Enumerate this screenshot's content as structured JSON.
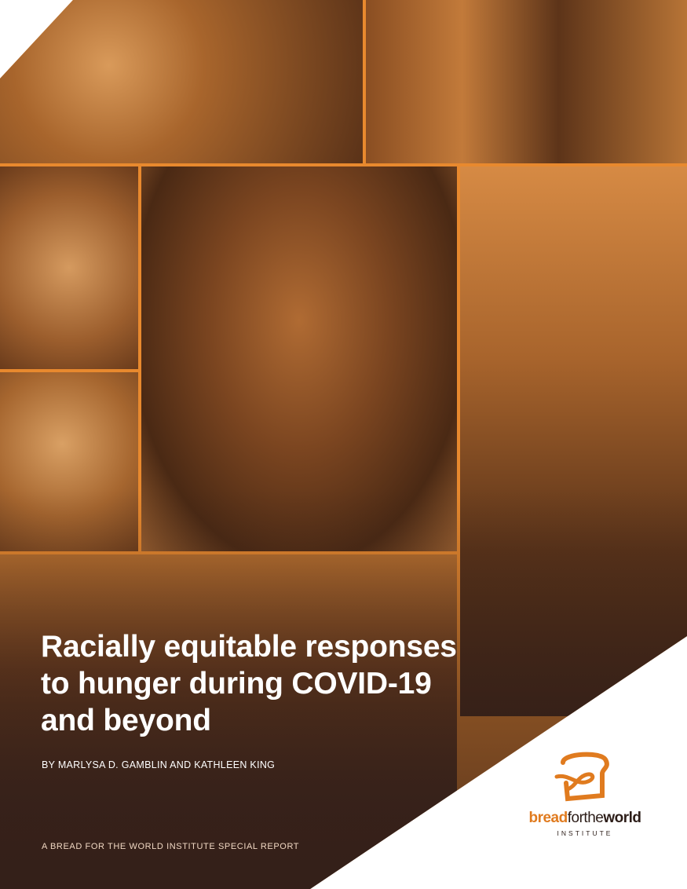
{
  "cover": {
    "title_lines": [
      "Racially equitable responses",
      "to hunger during COVID-19",
      "and beyond"
    ],
    "authors": "BY MARLYSA D. GAMBLIN AND KATHLEEN KING",
    "series": "A BREAD FOR THE WORLD INSTITUTE SPECIAL REPORT"
  },
  "logo": {
    "icon": "bread-slice-icon",
    "word_bread": "bread",
    "word_for": "for",
    "word_the": "the",
    "word_world": "world",
    "subtitle": "INSTITUTE"
  },
  "colors": {
    "brand_orange": "#e07b1f",
    "dark_brown": "#3c2417",
    "grid_orange": "#e8892e"
  }
}
